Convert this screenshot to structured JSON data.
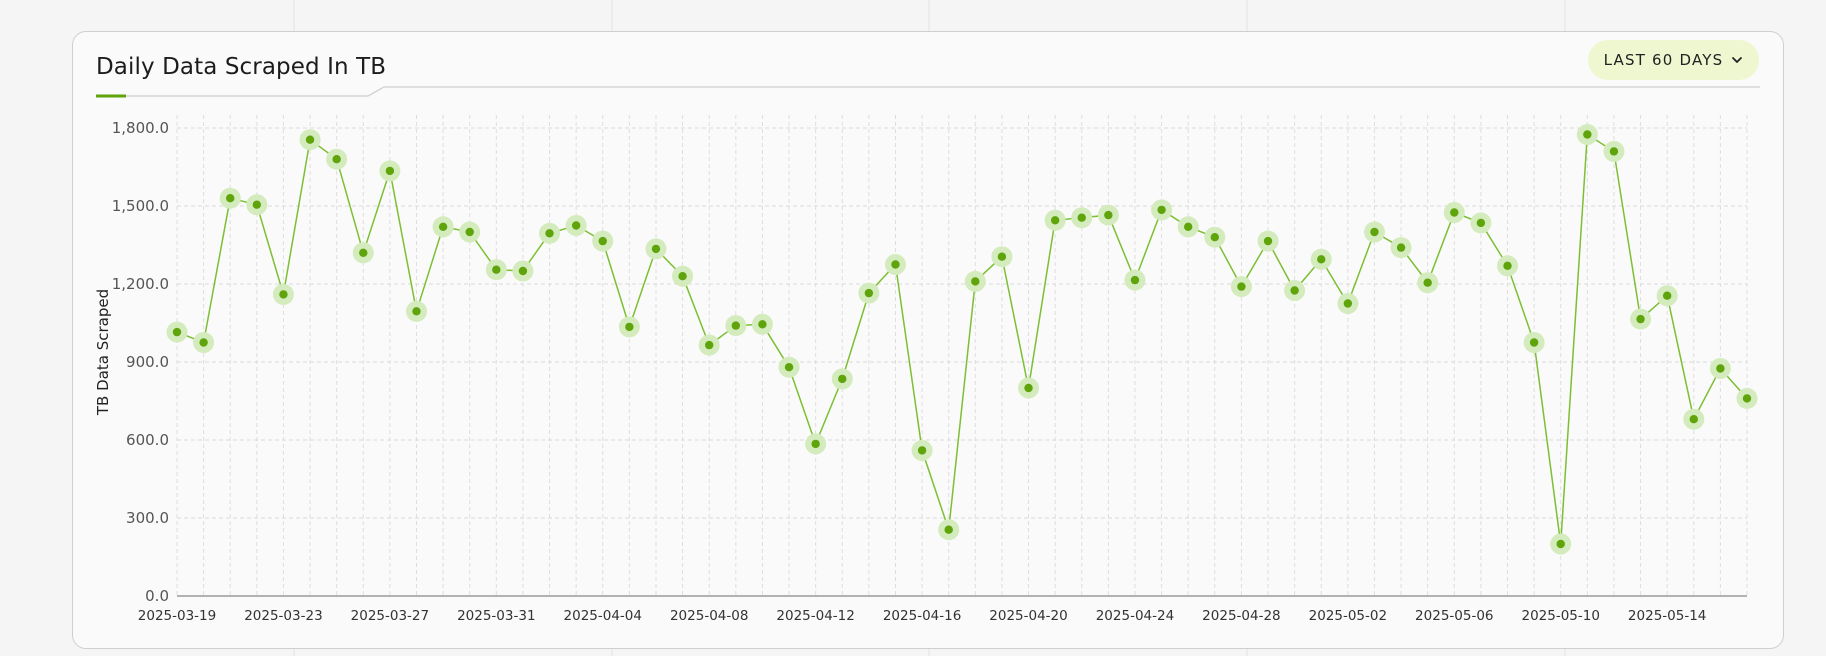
{
  "header": {
    "title": "Daily Data Scraped In TB",
    "range_label": "LAST 60 DAYS"
  },
  "colors": {
    "accent": "#5fa40b",
    "line": "#7cbf32",
    "halo": "#d3ebbd",
    "button_bg": "#eef7cf"
  },
  "chart_data": {
    "type": "line",
    "title": "Daily Data Scraped In TB",
    "ylabel": "TB Data Scraped",
    "xlabel": "",
    "ylim": [
      0,
      1800
    ],
    "grid": true,
    "yticks": [
      "0.0",
      "300.0",
      "600.0",
      "900.0",
      "1,200.0",
      "1,500.0",
      "1,800.0"
    ],
    "xticks": [
      "2025-03-19",
      "2025-03-23",
      "2025-03-27",
      "2025-03-31",
      "2025-04-04",
      "2025-04-08",
      "2025-04-12",
      "2025-04-16",
      "2025-04-20",
      "2025-04-24",
      "2025-04-28",
      "2025-05-02",
      "2025-05-06",
      "2025-05-10",
      "2025-05-14"
    ],
    "x": [
      "2025-03-19",
      "2025-03-20",
      "2025-03-21",
      "2025-03-22",
      "2025-03-23",
      "2025-03-24",
      "2025-03-25",
      "2025-03-26",
      "2025-03-27",
      "2025-03-28",
      "2025-03-29",
      "2025-03-30",
      "2025-03-31",
      "2025-04-01",
      "2025-04-02",
      "2025-04-03",
      "2025-04-04",
      "2025-04-05",
      "2025-04-06",
      "2025-04-07",
      "2025-04-08",
      "2025-04-09",
      "2025-04-10",
      "2025-04-11",
      "2025-04-12",
      "2025-04-13",
      "2025-04-14",
      "2025-04-15",
      "2025-04-16",
      "2025-04-17",
      "2025-04-18",
      "2025-04-19",
      "2025-04-20",
      "2025-04-21",
      "2025-04-22",
      "2025-04-23",
      "2025-04-24",
      "2025-04-25",
      "2025-04-26",
      "2025-04-27",
      "2025-04-28",
      "2025-04-29",
      "2025-04-30",
      "2025-05-01",
      "2025-05-02",
      "2025-05-03",
      "2025-05-04",
      "2025-05-05",
      "2025-05-06",
      "2025-05-07",
      "2025-05-08",
      "2025-05-09",
      "2025-05-10",
      "2025-05-11",
      "2025-05-12",
      "2025-05-13",
      "2025-05-14",
      "2025-05-15",
      "2025-05-16",
      "2025-05-17"
    ],
    "series": [
      {
        "values": [
          1015,
          975,
          1530,
          1505,
          1160,
          1755,
          1680,
          1320,
          1635,
          1095,
          1420,
          1400,
          1255,
          1250,
          1395,
          1425,
          1365,
          1035,
          1335,
          1230,
          965,
          1040,
          1045,
          880,
          585,
          835,
          1165,
          1275,
          560,
          255,
          1210,
          1305,
          800,
          1445,
          1455,
          1465,
          1215,
          1485,
          1420,
          1380,
          1190,
          1365,
          1175,
          1295,
          1125,
          1400,
          1340,
          1205,
          1475,
          1435,
          1270,
          975,
          200,
          1775,
          1710,
          1065,
          1155,
          680,
          875,
          760
        ]
      }
    ]
  }
}
